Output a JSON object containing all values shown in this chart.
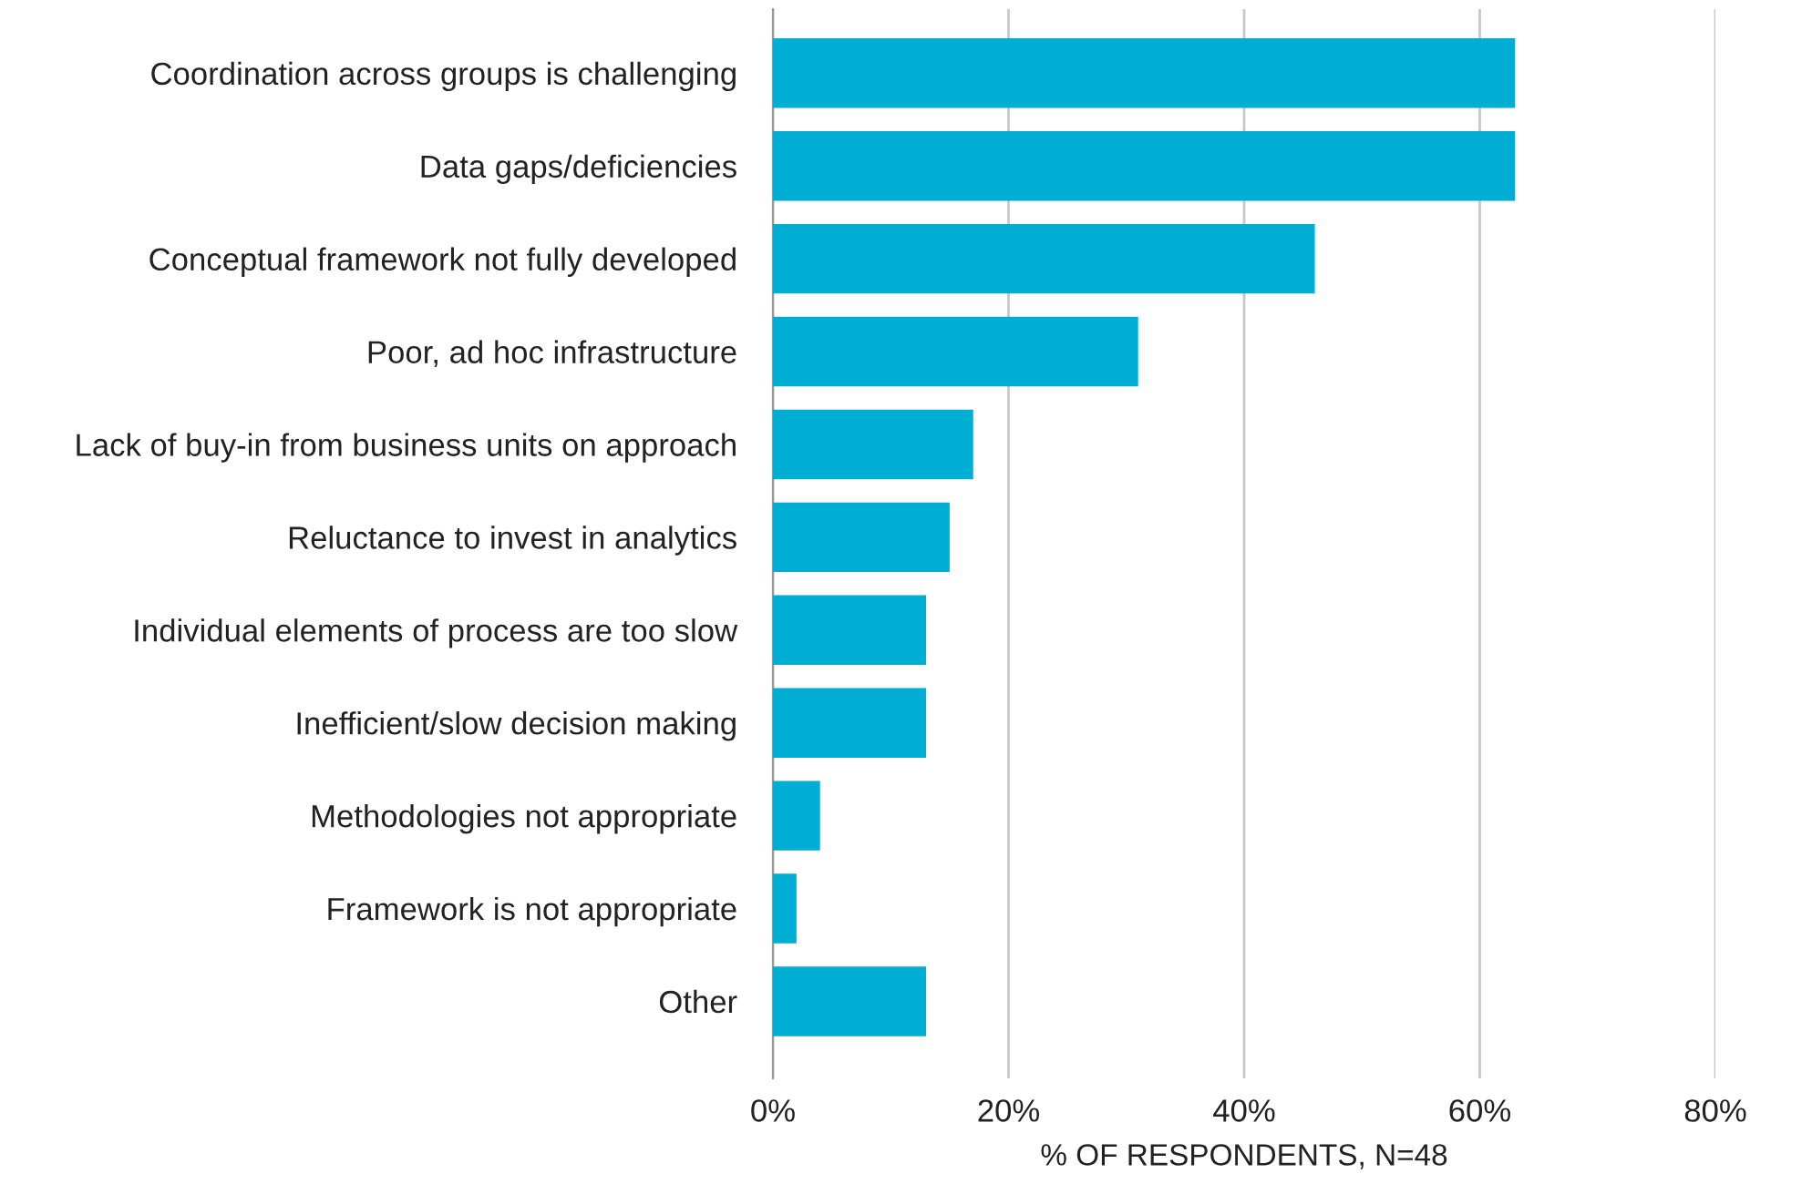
{
  "chart_data": {
    "type": "bar",
    "orientation": "horizontal",
    "xlabel": "% OF RESPONDENTS, N=48",
    "categories": [
      "Coordination across groups is challenging",
      "Data gaps/deficiencies",
      "Conceptual framework not fully developed",
      "Poor, ad hoc infrastructure",
      "Lack of buy-in from business units on approach",
      "Reluctance to invest in analytics",
      "Individual elements of process are too slow",
      "Inefficient/slow decision making",
      "Methodologies not appropriate",
      "Framework is not appropriate",
      "Other"
    ],
    "values": [
      63,
      63,
      46,
      31,
      17,
      15,
      13,
      13,
      4,
      2,
      13
    ],
    "color": "#00aed4",
    "xlim": [
      0,
      80
    ],
    "xticks": [
      {
        "value": 0,
        "label": "0%"
      },
      {
        "value": 20,
        "label": "20%"
      },
      {
        "value": 40,
        "label": "40%"
      },
      {
        "value": 60,
        "label": "60%"
      },
      {
        "value": 80,
        "label": "80%"
      }
    ],
    "grid": "x"
  }
}
